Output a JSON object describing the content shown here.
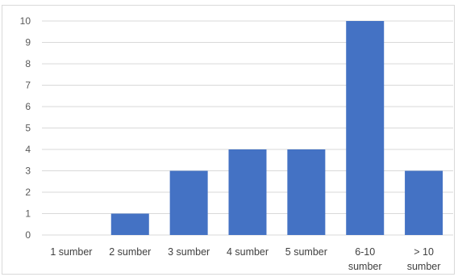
{
  "chart_data": {
    "type": "bar",
    "categories": [
      [
        "1 sumber"
      ],
      [
        "2 sumber"
      ],
      [
        "3 sumber"
      ],
      [
        "4 sumber"
      ],
      [
        "5 sumber"
      ],
      [
        "6-10",
        "sumber"
      ],
      [
        "> 10",
        "sumber"
      ]
    ],
    "values": [
      0,
      1,
      3,
      4,
      4,
      10,
      3
    ],
    "ylim": [
      0,
      10
    ],
    "yticks": [
      "0",
      "1",
      "2",
      "3",
      "4",
      "5",
      "6",
      "7",
      "8",
      "9",
      "10"
    ],
    "grid": true,
    "bar_color": "#4472c4",
    "grid_color": "#d9d9d9"
  }
}
